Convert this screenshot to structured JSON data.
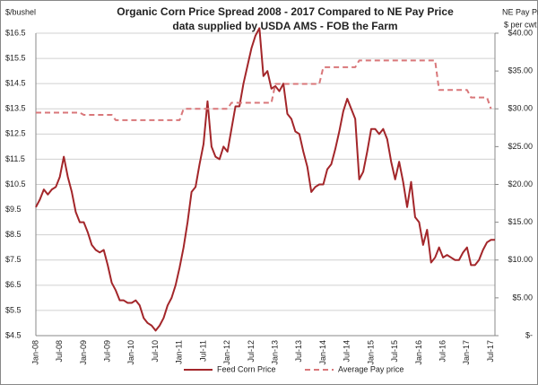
{
  "chart_data": {
    "type": "line",
    "title": "Organic Corn Price Spread 2008 - 2017 Compared to NE Pay Price",
    "subtitle": "data supplied by USDA AMS - FOB the Farm",
    "ylabel": "$/bushel",
    "y2label": [
      "NE Pay Price",
      "$ per cwt"
    ],
    "categories": [
      "Jan-08",
      null,
      null,
      null,
      null,
      null,
      "Jul-08",
      null,
      null,
      null,
      null,
      null,
      "Jan-09",
      null,
      null,
      null,
      null,
      null,
      "Jul-09",
      null,
      null,
      null,
      null,
      null,
      "Jan-10",
      null,
      null,
      null,
      null,
      null,
      "Jul-10",
      null,
      null,
      null,
      null,
      null,
      "Jan-11",
      null,
      null,
      null,
      null,
      null,
      "Jul-11",
      null,
      null,
      null,
      null,
      null,
      "Jan-12",
      null,
      null,
      null,
      null,
      null,
      "Jul-12",
      null,
      null,
      null,
      null,
      null,
      "Jan-13",
      null,
      null,
      null,
      null,
      null,
      "Jul-13",
      null,
      null,
      null,
      null,
      null,
      "Jan-14",
      null,
      null,
      null,
      null,
      null,
      "Jul-14",
      null,
      null,
      null,
      null,
      null,
      "Jan-15",
      null,
      null,
      null,
      null,
      null,
      "Jul-15",
      null,
      null,
      null,
      null,
      null,
      "Jan-16",
      null,
      null,
      null,
      null,
      null,
      "Jul-16",
      null,
      null,
      null,
      null,
      null,
      "Jan-17",
      null,
      null,
      null,
      null,
      null,
      "Jul-17",
      null
    ],
    "series": [
      {
        "name": "Feed Corn Price",
        "color": "#a3262a",
        "dash": false,
        "values": [
          9.6,
          9.9,
          10.3,
          10.1,
          10.3,
          10.4,
          10.8,
          11.6,
          10.8,
          10.2,
          9.4,
          9.0,
          9.0,
          8.6,
          8.1,
          7.9,
          7.8,
          7.9,
          7.3,
          6.6,
          6.3,
          5.9,
          5.9,
          5.8,
          5.8,
          5.9,
          5.7,
          5.2,
          5.0,
          4.9,
          4.7,
          4.9,
          5.2,
          5.7,
          6.0,
          6.5,
          7.2,
          8.0,
          9.0,
          10.2,
          10.4,
          11.3,
          12.1,
          13.8,
          12.0,
          11.6,
          11.5,
          12.0,
          11.8,
          12.7,
          13.6,
          13.6,
          14.5,
          15.2,
          15.9,
          16.4,
          16.7,
          14.8,
          15.0,
          14.3,
          14.4,
          14.2,
          14.5,
          13.3,
          13.1,
          12.6,
          12.5,
          11.8,
          11.2,
          10.2,
          10.4,
          10.5,
          10.5,
          11.1,
          11.3,
          11.9,
          12.6,
          13.4,
          13.9,
          13.5,
          13.1,
          10.7,
          11.0,
          11.8,
          12.7,
          12.7,
          12.5,
          12.7,
          12.3,
          11.4,
          10.7,
          11.4,
          10.6,
          9.6,
          10.6,
          9.2,
          9.0,
          8.1,
          8.7,
          7.4,
          7.6,
          8.0,
          7.6,
          7.7,
          7.6,
          7.5,
          7.5,
          7.8,
          8.0,
          7.3,
          7.3,
          7.5,
          7.9,
          8.2,
          8.3,
          8.3
        ]
      },
      {
        "name": "Average Pay price",
        "color": "#d9777a",
        "dash": true,
        "axis": "y2",
        "values": [
          29.5,
          29.5,
          29.5,
          29.5,
          29.5,
          29.5,
          29.5,
          29.5,
          29.5,
          29.5,
          29.5,
          29.5,
          29.2,
          29.2,
          29.2,
          29.2,
          29.2,
          29.2,
          29.2,
          29.2,
          28.5,
          28.5,
          28.5,
          28.5,
          28.5,
          28.5,
          28.5,
          28.5,
          28.5,
          28.5,
          28.5,
          28.5,
          28.5,
          28.5,
          28.5,
          28.5,
          28.5,
          30.0,
          30.0,
          30.0,
          30.0,
          30.0,
          30.0,
          30.0,
          30.0,
          30.0,
          30.0,
          30.0,
          30.0,
          30.8,
          30.8,
          30.8,
          30.8,
          30.8,
          30.8,
          30.8,
          30.8,
          30.8,
          30.8,
          30.8,
          33.3,
          33.3,
          33.3,
          33.3,
          33.3,
          33.3,
          33.3,
          33.3,
          33.3,
          33.3,
          33.3,
          33.3,
          35.5,
          35.5,
          35.5,
          35.5,
          35.5,
          35.5,
          35.5,
          35.5,
          35.5,
          36.4,
          36.4,
          36.4,
          36.4,
          36.4,
          36.4,
          36.4,
          36.4,
          36.4,
          36.4,
          36.4,
          36.4,
          36.4,
          36.4,
          36.4,
          36.4,
          36.4,
          36.4,
          36.4,
          36.4,
          32.5,
          32.5,
          32.5,
          32.5,
          32.5,
          32.5,
          32.5,
          32.5,
          31.5,
          31.5,
          31.5,
          31.5,
          31.5,
          30.0,
          null
        ]
      }
    ],
    "ylim": [
      4.5,
      16.5
    ],
    "yticks": [
      {
        "value": 4.5,
        "label": "$4.5"
      },
      {
        "value": 5.5,
        "label": "$5.5"
      },
      {
        "value": 6.5,
        "label": "$6.5"
      },
      {
        "value": 7.5,
        "label": "$7.5"
      },
      {
        "value": 8.5,
        "label": "$8.5"
      },
      {
        "value": 9.5,
        "label": "$9.5"
      },
      {
        "value": 10.5,
        "label": "$10.5"
      },
      {
        "value": 11.5,
        "label": "$11.5"
      },
      {
        "value": 12.5,
        "label": "$12.5"
      },
      {
        "value": 13.5,
        "label": "$13.5"
      },
      {
        "value": 14.5,
        "label": "$14.5"
      },
      {
        "value": 15.5,
        "label": "$15.5"
      },
      {
        "value": 16.5,
        "label": "$16.5"
      }
    ],
    "y2lim": [
      0,
      40
    ],
    "y2ticks": [
      {
        "value": 0,
        "label": "$-"
      },
      {
        "value": 5,
        "label": "$5.00"
      },
      {
        "value": 10,
        "label": "$10.00"
      },
      {
        "value": 15,
        "label": "$15.00"
      },
      {
        "value": 20,
        "label": "$20.00"
      },
      {
        "value": 25,
        "label": "$25.00"
      },
      {
        "value": 30,
        "label": "$30.00"
      },
      {
        "value": 35,
        "label": "$35.00"
      },
      {
        "value": 40,
        "label": "$40.00"
      }
    ],
    "grid": true,
    "legend": "bottom"
  }
}
